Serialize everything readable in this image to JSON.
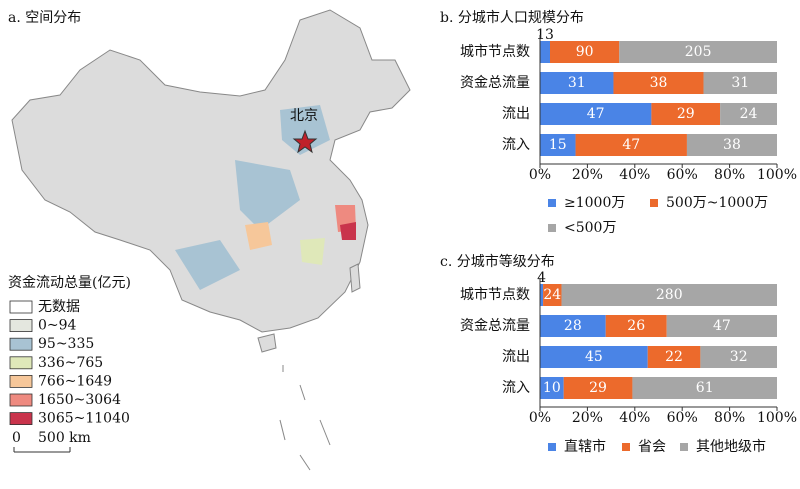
{
  "map": {
    "title": "a. 空间分布",
    "city_label": "北京",
    "legend_title": "资金流动总量(亿元)",
    "legend": [
      {
        "label": "无数据",
        "color": "#ffffff"
      },
      {
        "label": "0~94",
        "color": "#e4e7df"
      },
      {
        "label": "95~335",
        "color": "#a8c3d3"
      },
      {
        "label": "336~765",
        "color": "#dfe8b9"
      },
      {
        "label": "766~1649",
        "color": "#f6c79a"
      },
      {
        "label": "1650~3064",
        "color": "#ee8a80"
      },
      {
        "label": "3065~11040",
        "color": "#c9344c"
      }
    ],
    "scale_labels": [
      "0",
      "500 km"
    ]
  },
  "chart_data": [
    {
      "type": "bar",
      "orientation": "horizontal",
      "stacking": "percent",
      "title": "b. 分城市人口规模分布",
      "categories": [
        "城市节点数",
        "资金总流量",
        "流出",
        "流入"
      ],
      "series": [
        {
          "name": "≥1000万",
          "color": "#4a84e6",
          "values": [
            13,
            31,
            47,
            15
          ]
        },
        {
          "name": "500万~1000万",
          "color": "#ec6a2c",
          "values": [
            90,
            38,
            29,
            47
          ]
        },
        {
          "name": "<500万",
          "color": "#a6a6a6",
          "values": [
            205,
            31,
            24,
            38
          ]
        }
      ],
      "xlim": [
        0,
        100
      ],
      "xticks": [
        {
          "value": 0,
          "label": "0%"
        },
        {
          "value": 20,
          "label": "20%"
        },
        {
          "value": 40,
          "label": "40%"
        },
        {
          "value": 60,
          "label": "60%"
        },
        {
          "value": 80,
          "label": "80%"
        },
        {
          "value": 100,
          "label": "100%"
        }
      ]
    },
    {
      "type": "bar",
      "orientation": "horizontal",
      "stacking": "percent",
      "title": "c. 分城市等级分布",
      "categories": [
        "城市节点数",
        "资金总流量",
        "流出",
        "流入"
      ],
      "series": [
        {
          "name": "直辖市",
          "color": "#4a84e6",
          "values": [
            4,
            28,
            45,
            10
          ]
        },
        {
          "name": "省会",
          "color": "#ec6a2c",
          "values": [
            24,
            26,
            22,
            29
          ]
        },
        {
          "name": "其他地级市",
          "color": "#a6a6a6",
          "values": [
            280,
            47,
            32,
            61
          ]
        }
      ],
      "xlim": [
        0,
        100
      ],
      "xticks": [
        {
          "value": 0,
          "label": "0%"
        },
        {
          "value": 20,
          "label": "20%"
        },
        {
          "value": 40,
          "label": "40%"
        },
        {
          "value": 60,
          "label": "60%"
        },
        {
          "value": 80,
          "label": "80%"
        },
        {
          "value": 100,
          "label": "100%"
        }
      ]
    }
  ]
}
